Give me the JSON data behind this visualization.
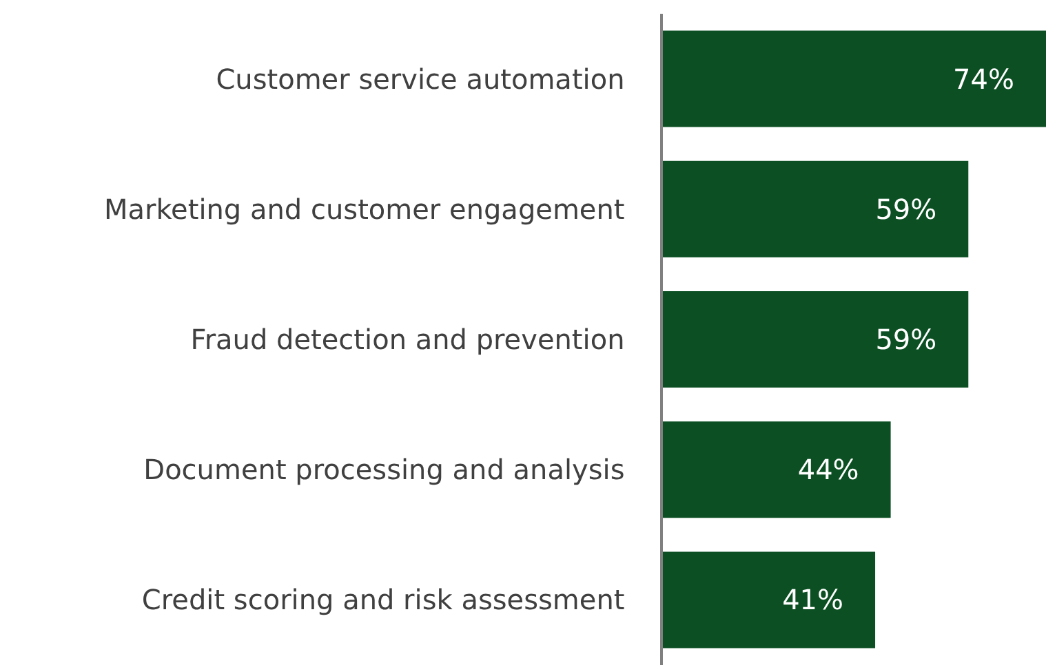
{
  "chart_data": {
    "type": "bar",
    "orientation": "horizontal",
    "categories": [
      "Customer service automation",
      "Marketing and customer engagement",
      "Fraud detection and prevention",
      "Document processing and analysis",
      "Credit scoring and risk assessment"
    ],
    "values": [
      74,
      59,
      59,
      44,
      41
    ],
    "value_labels": [
      "74%",
      "59%",
      "59%",
      "44%",
      "41%"
    ],
    "color": "#0b4f22",
    "tick_labels": "y"
  }
}
